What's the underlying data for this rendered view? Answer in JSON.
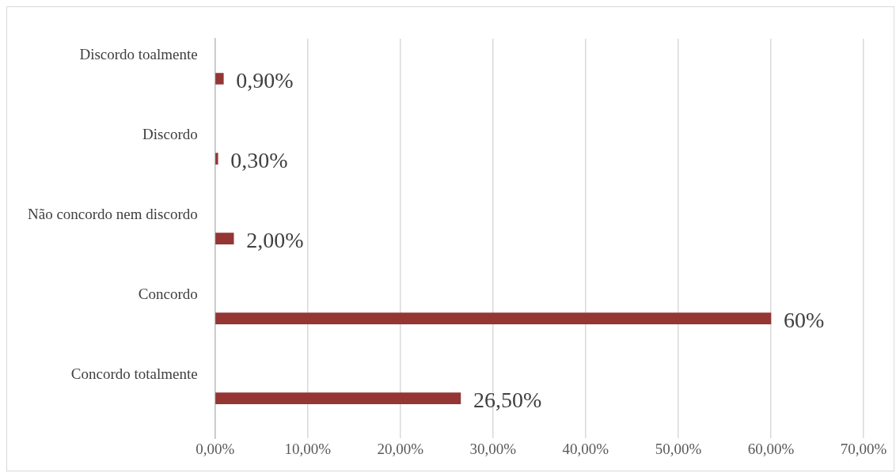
{
  "chart_data": {
    "type": "bar",
    "orientation": "horizontal",
    "categories": [
      "Discordo toalmente",
      "Discordo",
      "Não concordo nem discordo",
      "Concordo",
      "Concordo totalmente"
    ],
    "values": [
      0.9,
      0.3,
      2.0,
      60,
      26.5
    ],
    "value_labels": [
      "0,90%",
      "0,30%",
      "2,00%",
      "60%",
      "26,50%"
    ],
    "color": "#943634",
    "xlim": [
      0,
      70
    ],
    "xticks": [
      {
        "value": 0,
        "label": "0,00%"
      },
      {
        "value": 10,
        "label": "10,00%"
      },
      {
        "value": 20,
        "label": "20,00%"
      },
      {
        "value": 30,
        "label": "30,00%"
      },
      {
        "value": 40,
        "label": "40,00%"
      },
      {
        "value": 50,
        "label": "50,00%"
      },
      {
        "value": 60,
        "label": "60,00%"
      },
      {
        "value": 70,
        "label": "70,00%"
      }
    ],
    "grid": "x"
  }
}
